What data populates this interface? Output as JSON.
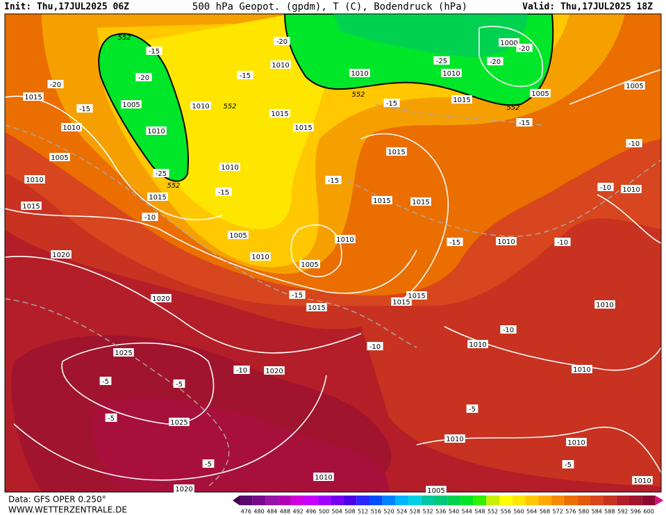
{
  "header": {
    "init": "Init: Thu,17JUL2025 06Z",
    "title": "500 hPa Geopot. (gpdm), T (C), Bodendruck (hPa)",
    "valid": "Valid: Thu,17JUL2025 18Z"
  },
  "footer": {
    "data": "Data: GFS OPER 0.250°",
    "site": "WWW.WETTERZENTRALE.DE"
  },
  "colorbar": {
    "ticks": [
      476,
      480,
      484,
      488,
      492,
      496,
      500,
      504,
      508,
      512,
      516,
      520,
      524,
      528,
      532,
      536,
      540,
      544,
      548,
      552,
      556,
      560,
      564,
      568,
      572,
      576,
      580,
      584,
      588,
      592,
      596,
      600
    ],
    "colors": [
      "#5a0a6e",
      "#780a8c",
      "#9614a8",
      "#b400b4",
      "#d200dc",
      "#c800ff",
      "#a000ff",
      "#7800f0",
      "#5000e6",
      "#2828ff",
      "#0050ff",
      "#0082ff",
      "#00b4ff",
      "#00d2e6",
      "#00c8a0",
      "#00c878",
      "#00d250",
      "#00e628",
      "#32f000",
      "#c8f000",
      "#ffff00",
      "#ffe600",
      "#ffc800",
      "#ffaa00",
      "#f58c00",
      "#eb6e00",
      "#e15a0a",
      "#d7461e",
      "#c8321e",
      "#b41e28",
      "#a0142d",
      "#8c0a32"
    ],
    "low_color": "#3c0046",
    "high_color": "#d2147a"
  },
  "pressure_labels": [
    "1015",
    "1010",
    "1005",
    "1010",
    "1015",
    "1020",
    "1020",
    "1025",
    "1025",
    "1020",
    "1020",
    "1010",
    "1005",
    "1005",
    "1010",
    "1015",
    "1015",
    "1015",
    "1015",
    "1015",
    "1015",
    "1015",
    "1015",
    "1010",
    "1010",
    "1015",
    "1010",
    "1005",
    "1010",
    "1010",
    "1010",
    "1000",
    "1005",
    "1015",
    "1005",
    "1010",
    "1010",
    "1010",
    "1010",
    "1010",
    "1010",
    "1010",
    "1010",
    "1005",
    "1010"
  ],
  "temperature_labels": [
    "-20",
    "-15",
    "-15",
    "-20",
    "-25",
    "-15",
    "-20",
    "-15",
    "-25",
    "-20",
    "-20",
    "-15",
    "-15",
    "-15",
    "-10",
    "-10",
    "-10",
    "-15",
    "-10",
    "-15",
    "-10",
    "-10",
    "-10",
    "-5",
    "-5",
    "-5",
    "-5",
    "-5",
    "-5"
  ],
  "geopotential_labels": [
    "552",
    "552",
    "552",
    "552",
    "552"
  ]
}
